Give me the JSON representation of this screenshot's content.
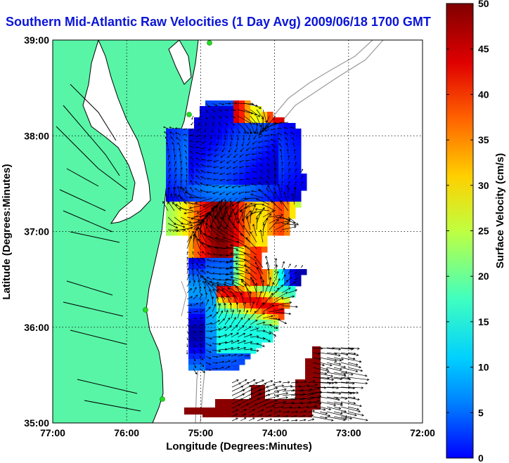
{
  "title": "Southern Mid-Atlantic Raw Velocities (1 Day Avg) 2009/06/18 1700 GMT",
  "map": {
    "xlabel": "Longitude (Degrees:Minutes)",
    "ylabel": "Latitude (Degrees:Minutes)",
    "x_ticks": [
      "77:00",
      "76:00",
      "75:00",
      "74:00",
      "73:00",
      "72:00"
    ],
    "y_ticks": [
      "39:00",
      "38:00",
      "37:00",
      "36:00",
      "35:00"
    ],
    "x_range": [
      -77,
      -72
    ],
    "y_range": [
      35,
      39
    ],
    "grid": true,
    "land_color": "#58f5a6",
    "contour_color": "#9a9a9a",
    "vector_color": "#000000",
    "station_color": "#22dd22"
  },
  "colorbar": {
    "label": "Surface Velocity (cm/s)",
    "ticks": [
      "0",
      "5",
      "10",
      "15",
      "20",
      "25",
      "30",
      "35",
      "40",
      "45",
      "50"
    ],
    "range": [
      0,
      50
    ],
    "colormap": "jet"
  }
}
